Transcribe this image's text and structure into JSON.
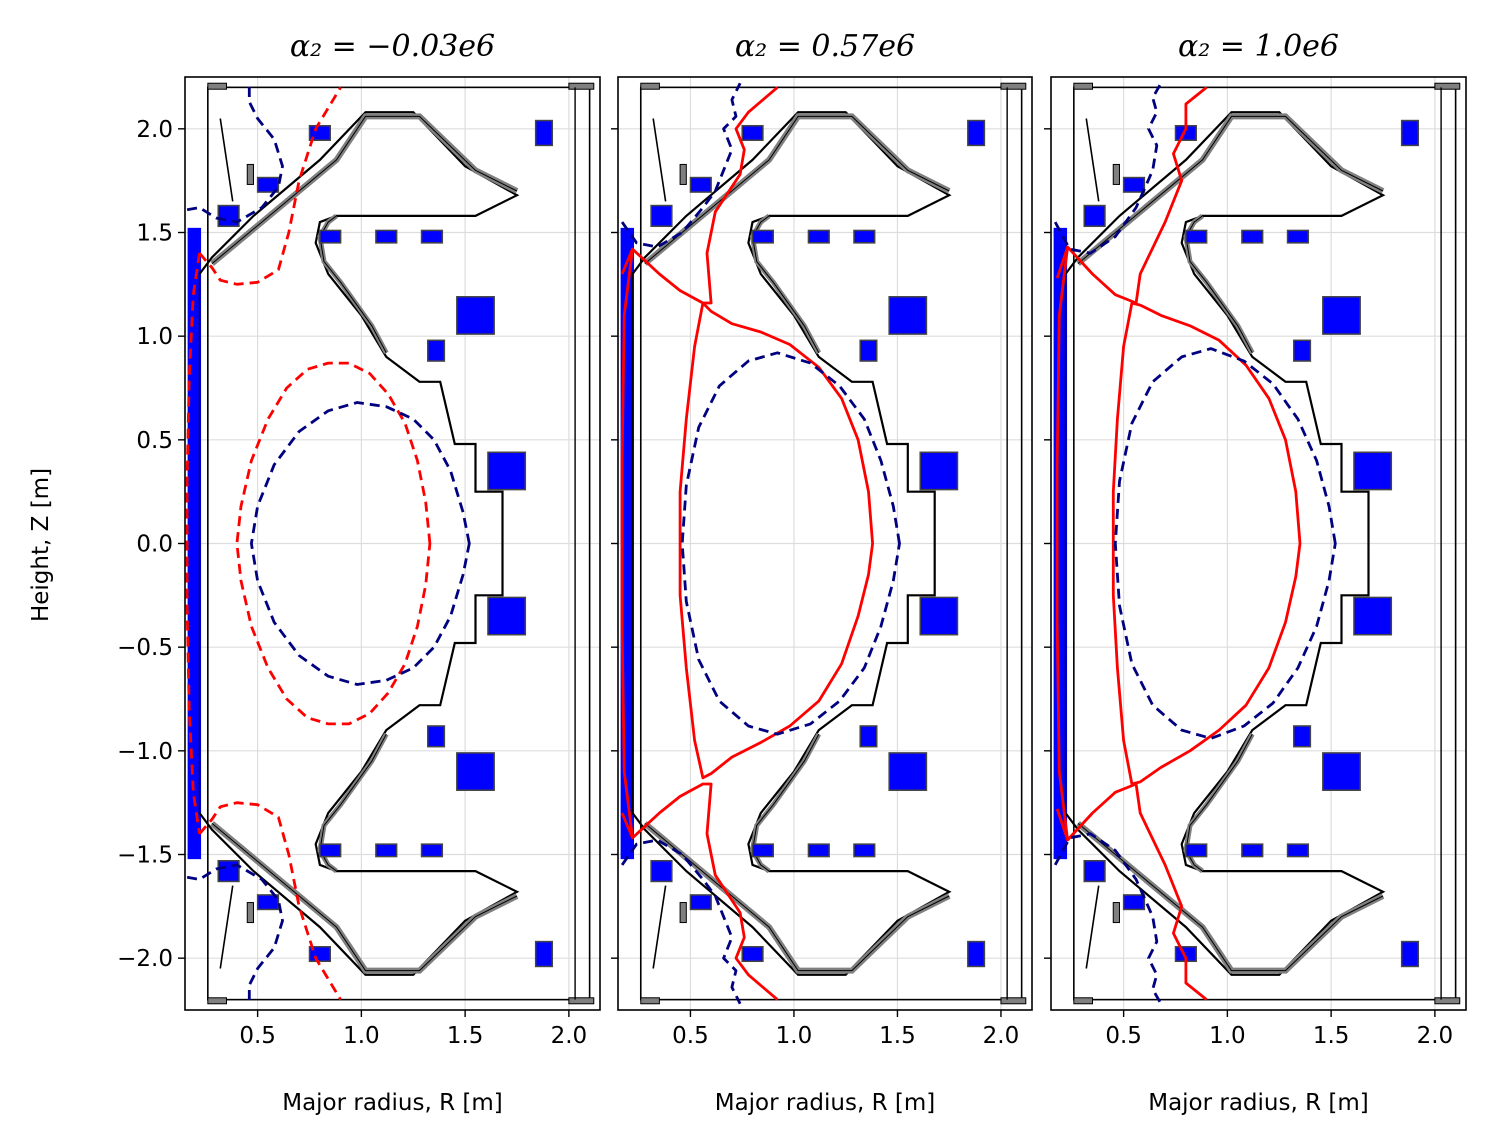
{
  "chart_data": [
    {
      "type": "line",
      "title": "α₂ = −0.03e6",
      "xlabel": "Major radius, R [m]",
      "ylabel": "Height, Z [m]",
      "xlim": [
        0.15,
        2.15
      ],
      "ylim": [
        -2.25,
        2.25
      ],
      "xticks": [
        0.5,
        1.0,
        1.5,
        2.0
      ],
      "yticks": [
        -2.0,
        -1.5,
        -1.0,
        -0.5,
        0.0,
        0.5,
        1.0,
        1.5,
        2.0
      ],
      "grid": true,
      "separatrix_style": "dashed",
      "series": [
        {
          "name": "separatrix",
          "color": "#ff0000",
          "closed": true,
          "x": [
            1.33,
            1.31,
            1.27,
            1.21,
            1.13,
            1.04,
            0.94,
            0.84,
            0.74,
            0.64,
            0.55,
            0.47,
            0.42,
            0.4,
            0.42,
            0.47,
            0.55,
            0.64,
            0.74,
            0.84,
            0.94,
            1.04,
            1.13,
            1.21,
            1.27,
            1.31
          ],
          "y": [
            0.0,
            0.2,
            0.4,
            0.58,
            0.72,
            0.82,
            0.87,
            0.87,
            0.84,
            0.75,
            0.6,
            0.4,
            0.18,
            0.0,
            -0.18,
            -0.4,
            -0.6,
            -0.75,
            -0.84,
            -0.87,
            -0.87,
            -0.82,
            -0.72,
            -0.58,
            -0.4,
            -0.2
          ]
        },
        {
          "name": "separatrix upper",
          "color": "#ff0000",
          "x": [
            0.22,
            0.28,
            0.32,
            0.4,
            0.5,
            0.6,
            0.65,
            0.7,
            0.78,
            0.9
          ],
          "y": [
            1.4,
            1.33,
            1.27,
            1.25,
            1.26,
            1.32,
            1.5,
            1.75,
            2.0,
            2.2
          ]
        },
        {
          "name": "separatrix lower",
          "color": "#ff0000",
          "x": [
            0.22,
            0.28,
            0.32,
            0.4,
            0.5,
            0.6,
            0.65,
            0.7,
            0.78,
            0.9
          ],
          "y": [
            -1.4,
            -1.33,
            -1.27,
            -1.25,
            -1.26,
            -1.32,
            -1.5,
            -1.75,
            -2.0,
            -2.2
          ]
        },
        {
          "name": "separatrix left",
          "color": "#ff0000",
          "x": [
            0.22,
            0.19,
            0.17,
            0.16,
            0.16,
            0.17,
            0.19,
            0.22
          ],
          "y": [
            1.4,
            1.2,
            0.8,
            0.3,
            -0.3,
            -0.8,
            -1.2,
            -1.4
          ]
        },
        {
          "name": "reference",
          "color": "#000080",
          "closed": true,
          "x": [
            1.52,
            1.49,
            1.43,
            1.35,
            1.25,
            1.12,
            0.98,
            0.84,
            0.7,
            0.58,
            0.5,
            0.47,
            0.5,
            0.58,
            0.7,
            0.84,
            0.98,
            1.12,
            1.25,
            1.35,
            1.43,
            1.49
          ],
          "y": [
            0.0,
            0.15,
            0.35,
            0.5,
            0.6,
            0.66,
            0.68,
            0.64,
            0.54,
            0.38,
            0.18,
            0.0,
            -0.18,
            -0.38,
            -0.54,
            -0.64,
            -0.68,
            -0.66,
            -0.6,
            -0.5,
            -0.35,
            -0.15
          ]
        },
        {
          "name": "reference upper",
          "color": "#000080",
          "x": [
            0.16,
            0.22,
            0.3,
            0.4,
            0.52,
            0.6,
            0.62,
            0.58,
            0.5,
            0.46,
            0.46
          ],
          "y": [
            1.61,
            1.62,
            1.57,
            1.55,
            1.62,
            1.72,
            1.82,
            1.95,
            2.05,
            2.13,
            2.22
          ]
        },
        {
          "name": "reference lower",
          "color": "#000080",
          "x": [
            0.16,
            0.22,
            0.3,
            0.4,
            0.52,
            0.6,
            0.62,
            0.58,
            0.5,
            0.46,
            0.46
          ],
          "y": [
            -1.61,
            -1.62,
            -1.57,
            -1.55,
            -1.62,
            -1.72,
            -1.82,
            -1.95,
            -2.05,
            -2.13,
            -2.22
          ]
        }
      ]
    },
    {
      "type": "line",
      "title": "α₂ = 0.57e6",
      "xlabel": "Major radius, R [m]",
      "ylabel": "",
      "xlim": [
        0.15,
        2.15
      ],
      "ylim": [
        -2.25,
        2.25
      ],
      "xticks": [
        0.5,
        1.0,
        1.5,
        2.0
      ],
      "yticks": [
        -2.0,
        -1.5,
        -1.0,
        -0.5,
        0.0,
        0.5,
        1.0,
        1.5,
        2.0
      ],
      "grid": true,
      "separatrix_style": "solid",
      "series": [
        {
          "name": "separatrix",
          "color": "#ff0000",
          "closed": true,
          "x": [
            1.38,
            1.36,
            1.31,
            1.23,
            1.12,
            0.98,
            0.84,
            0.7,
            0.6,
            0.56,
            0.52,
            0.48,
            0.45,
            0.45,
            0.48,
            0.52,
            0.56,
            0.6,
            0.7,
            0.84,
            0.98,
            1.12,
            1.23,
            1.31,
            1.36
          ],
          "y": [
            0.0,
            0.25,
            0.5,
            0.7,
            0.85,
            0.96,
            1.02,
            1.06,
            1.12,
            1.16,
            0.95,
            0.6,
            0.25,
            -0.25,
            -0.6,
            -0.95,
            -1.13,
            -1.11,
            -1.03,
            -0.96,
            -0.88,
            -0.76,
            -0.58,
            -0.35,
            -0.15
          ]
        },
        {
          "name": "separatrix legs upper",
          "color": "#ff0000",
          "x": [
            0.17,
            0.22,
            0.35,
            0.45,
            0.56,
            0.6,
            0.58,
            0.62,
            0.74,
            0.76,
            0.72,
            0.78,
            0.92
          ],
          "y": [
            1.3,
            1.42,
            1.3,
            1.22,
            1.16,
            1.16,
            1.4,
            1.6,
            1.78,
            1.9,
            2.0,
            2.08,
            2.2
          ]
        },
        {
          "name": "separatrix legs lower",
          "color": "#ff0000",
          "x": [
            0.17,
            0.22,
            0.35,
            0.45,
            0.56,
            0.6,
            0.58,
            0.62,
            0.74,
            0.76,
            0.72,
            0.78,
            0.92
          ],
          "y": [
            -1.3,
            -1.42,
            -1.3,
            -1.22,
            -1.16,
            -1.16,
            -1.4,
            -1.6,
            -1.78,
            -1.9,
            -2.0,
            -2.08,
            -2.2
          ]
        },
        {
          "name": "separatrix left",
          "color": "#ff0000",
          "x": [
            0.22,
            0.18,
            0.17,
            0.17,
            0.18,
            0.22
          ],
          "y": [
            1.42,
            1.1,
            0.4,
            -0.4,
            -1.1,
            -1.42
          ]
        },
        {
          "name": "reference",
          "color": "#000080",
          "closed": true,
          "x": [
            1.51,
            1.48,
            1.42,
            1.34,
            1.22,
            1.08,
            0.92,
            0.78,
            0.64,
            0.54,
            0.48,
            0.46,
            0.48,
            0.54,
            0.64,
            0.78,
            0.92,
            1.08,
            1.22,
            1.34,
            1.42,
            1.48
          ],
          "y": [
            0.0,
            0.18,
            0.4,
            0.6,
            0.76,
            0.87,
            0.92,
            0.88,
            0.76,
            0.56,
            0.28,
            0.0,
            -0.28,
            -0.56,
            -0.76,
            -0.88,
            -0.92,
            -0.87,
            -0.76,
            -0.6,
            -0.4,
            -0.18
          ]
        },
        {
          "name": "reference upper",
          "color": "#000080",
          "x": [
            0.17,
            0.24,
            0.34,
            0.46,
            0.56,
            0.62,
            0.66,
            0.7,
            0.66,
            0.72,
            0.7,
            0.74
          ],
          "y": [
            1.55,
            1.45,
            1.43,
            1.5,
            1.62,
            1.7,
            1.8,
            1.9,
            2.0,
            2.06,
            2.14,
            2.22
          ]
        },
        {
          "name": "reference lower",
          "color": "#000080",
          "x": [
            0.17,
            0.24,
            0.34,
            0.46,
            0.56,
            0.62,
            0.66,
            0.7,
            0.66,
            0.72,
            0.7,
            0.74
          ],
          "y": [
            -1.55,
            -1.45,
            -1.43,
            -1.5,
            -1.62,
            -1.7,
            -1.8,
            -1.9,
            -2.0,
            -2.06,
            -2.14,
            -2.22
          ]
        }
      ]
    },
    {
      "type": "line",
      "title": "α₂ = 1.0e6",
      "xlabel": "Major radius, R [m]",
      "ylabel": "",
      "xlim": [
        0.15,
        2.15
      ],
      "ylim": [
        -2.25,
        2.25
      ],
      "xticks": [
        0.5,
        1.0,
        1.5,
        2.0
      ],
      "yticks": [
        -2.0,
        -1.5,
        -1.0,
        -0.5,
        0.0,
        0.5,
        1.0,
        1.5,
        2.0
      ],
      "grid": true,
      "separatrix_style": "solid",
      "series": [
        {
          "name": "separatrix",
          "color": "#ff0000",
          "closed": true,
          "x": [
            1.35,
            1.33,
            1.28,
            1.2,
            1.09,
            0.96,
            0.82,
            0.68,
            0.58,
            0.54,
            0.5,
            0.47,
            0.45,
            0.45,
            0.47,
            0.5,
            0.54,
            0.58,
            0.68,
            0.82,
            0.96,
            1.09,
            1.2,
            1.28,
            1.33
          ],
          "y": [
            0.0,
            0.25,
            0.5,
            0.7,
            0.86,
            0.98,
            1.05,
            1.1,
            1.15,
            1.16,
            0.95,
            0.6,
            0.25,
            -0.25,
            -0.6,
            -0.95,
            -1.16,
            -1.15,
            -1.08,
            -1.0,
            -0.9,
            -0.78,
            -0.6,
            -0.38,
            -0.16
          ]
        },
        {
          "name": "separatrix legs upper",
          "color": "#ff0000",
          "x": [
            0.18,
            0.23,
            0.35,
            0.46,
            0.56,
            0.58,
            0.7,
            0.78,
            0.74,
            0.8,
            0.8,
            0.9
          ],
          "y": [
            1.28,
            1.43,
            1.3,
            1.2,
            1.16,
            1.3,
            1.55,
            1.75,
            1.88,
            2.0,
            2.12,
            2.2
          ]
        },
        {
          "name": "separatrix legs lower",
          "color": "#ff0000",
          "x": [
            0.18,
            0.23,
            0.35,
            0.46,
            0.56,
            0.58,
            0.7,
            0.78,
            0.74,
            0.8,
            0.8,
            0.9
          ],
          "y": [
            -1.28,
            -1.43,
            -1.3,
            -1.2,
            -1.16,
            -1.3,
            -1.55,
            -1.75,
            -1.88,
            -2.0,
            -2.12,
            -2.2
          ]
        },
        {
          "name": "separatrix left",
          "color": "#ff0000",
          "x": [
            0.23,
            0.19,
            0.18,
            0.18,
            0.19,
            0.23
          ],
          "y": [
            1.43,
            1.1,
            0.4,
            -0.4,
            -1.1,
            -1.43
          ]
        },
        {
          "name": "reference",
          "color": "#000080",
          "closed": true,
          "x": [
            1.52,
            1.49,
            1.43,
            1.34,
            1.22,
            1.08,
            0.92,
            0.78,
            0.64,
            0.54,
            0.48,
            0.46,
            0.48,
            0.54,
            0.64,
            0.78,
            0.92,
            1.08,
            1.22,
            1.34,
            1.43,
            1.49
          ],
          "y": [
            0.0,
            0.18,
            0.4,
            0.6,
            0.77,
            0.88,
            0.94,
            0.9,
            0.78,
            0.58,
            0.3,
            0.0,
            -0.3,
            -0.58,
            -0.78,
            -0.9,
            -0.94,
            -0.88,
            -0.77,
            -0.6,
            -0.4,
            -0.18
          ]
        },
        {
          "name": "reference upper",
          "color": "#000080",
          "x": [
            0.17,
            0.24,
            0.34,
            0.46,
            0.56,
            0.64,
            0.66,
            0.62,
            0.66,
            0.64,
            0.68
          ],
          "y": [
            1.55,
            1.42,
            1.4,
            1.48,
            1.62,
            1.8,
            1.92,
            2.0,
            2.08,
            2.15,
            2.22
          ]
        },
        {
          "name": "reference lower",
          "color": "#000080",
          "x": [
            0.17,
            0.24,
            0.34,
            0.46,
            0.56,
            0.64,
            0.66,
            0.62,
            0.66,
            0.64,
            0.68
          ],
          "y": [
            -1.55,
            -1.42,
            -1.4,
            -1.48,
            -1.62,
            -1.8,
            -1.92,
            -2.0,
            -2.08,
            -2.15,
            -2.22
          ]
        }
      ]
    }
  ],
  "machine": {
    "wall_color": "#808080",
    "coil_color": "#0000ff",
    "wall_outline_upper_R": [
      0.26,
      0.55,
      0.8,
      1.0,
      1.25,
      1.32,
      1.48,
      1.55,
      1.68,
      1.75,
      1.95
    ],
    "wall_outline_upper_Z": [
      1.3,
      1.55,
      1.75,
      2.05,
      2.05,
      1.95,
      1.72,
      1.6,
      1.55,
      1.68,
      1.75
    ],
    "coils": [
      {
        "r": 0.36,
        "z": 1.58,
        "dr": 0.1,
        "dz": 0.1
      },
      {
        "r": 0.55,
        "z": 1.73,
        "dr": 0.1,
        "dz": 0.07
      },
      {
        "r": 0.8,
        "z": 1.98,
        "dr": 0.1,
        "dz": 0.07
      },
      {
        "r": 0.85,
        "z": 1.48,
        "dr": 0.1,
        "dz": 0.06
      },
      {
        "r": 1.12,
        "z": 1.48,
        "dr": 0.1,
        "dz": 0.06
      },
      {
        "r": 1.34,
        "z": 1.48,
        "dr": 0.1,
        "dz": 0.06
      },
      {
        "r": 1.88,
        "z": 1.98,
        "dr": 0.08,
        "dz": 0.12
      },
      {
        "r": 1.55,
        "z": 1.1,
        "dr": 0.18,
        "dz": 0.18
      },
      {
        "r": 1.7,
        "z": 0.35,
        "dr": 0.18,
        "dz": 0.18
      },
      {
        "r": 1.7,
        "z": -0.35,
        "dr": 0.18,
        "dz": 0.18
      },
      {
        "r": 1.55,
        "z": -1.1,
        "dr": 0.18,
        "dz": 0.18
      },
      {
        "r": 0.36,
        "z": -1.58,
        "dr": 0.1,
        "dz": 0.1
      },
      {
        "r": 0.55,
        "z": -1.73,
        "dr": 0.1,
        "dz": 0.07
      },
      {
        "r": 0.8,
        "z": -1.98,
        "dr": 0.1,
        "dz": 0.07
      },
      {
        "r": 0.85,
        "z": -1.48,
        "dr": 0.1,
        "dz": 0.06
      },
      {
        "r": 1.12,
        "z": -1.48,
        "dr": 0.1,
        "dz": 0.06
      },
      {
        "r": 1.34,
        "z": -1.48,
        "dr": 0.1,
        "dz": 0.06
      },
      {
        "r": 1.88,
        "z": -1.98,
        "dr": 0.08,
        "dz": 0.12
      },
      {
        "r": 1.36,
        "z": 0.93,
        "dr": 0.08,
        "dz": 0.1
      },
      {
        "r": 1.36,
        "z": -0.93,
        "dr": 0.08,
        "dz": 0.1
      }
    ]
  }
}
